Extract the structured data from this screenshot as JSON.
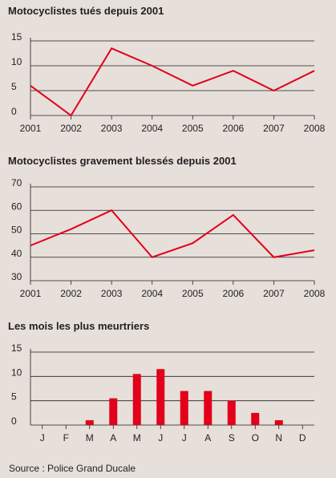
{
  "chart_data": [
    {
      "type": "line",
      "title": "Motocyclistes tués depuis 2001",
      "x": [
        "2001",
        "2002",
        "2003",
        "2004",
        "2005",
        "2006",
        "2007",
        "2008"
      ],
      "values": [
        6,
        0,
        13.5,
        10,
        6,
        9,
        5,
        9
      ],
      "ylim": [
        0,
        15
      ],
      "yticks": [
        "0",
        "5",
        "10",
        "15"
      ],
      "grid": true,
      "line_color": "#e2001a"
    },
    {
      "type": "line",
      "title": "Motocyclistes gravement blessés depuis 2001",
      "x": [
        "2001",
        "2002",
        "2003",
        "2004",
        "2005",
        "2006",
        "2007",
        "2008"
      ],
      "values": [
        45,
        52,
        60,
        40,
        46,
        58,
        40,
        43
      ],
      "ylim": [
        30,
        70
      ],
      "yticks": [
        "30",
        "40",
        "50",
        "60",
        "70"
      ],
      "grid": true,
      "line_color": "#e2001a"
    },
    {
      "type": "bar",
      "title": "Les mois les plus meurtriers",
      "categories": [
        "J",
        "F",
        "M",
        "A",
        "M",
        "J",
        "J",
        "A",
        "S",
        "O",
        "N",
        "D"
      ],
      "values": [
        0,
        0,
        1,
        5.5,
        10.5,
        11.5,
        7,
        7,
        5,
        2.5,
        1,
        0
      ],
      "ylim": [
        0,
        15
      ],
      "yticks": [
        "0",
        "5",
        "10",
        "15"
      ],
      "grid": true,
      "bar_color": "#e2001a"
    }
  ],
  "footer": {
    "source": "Source : Police Grand Ducale"
  }
}
